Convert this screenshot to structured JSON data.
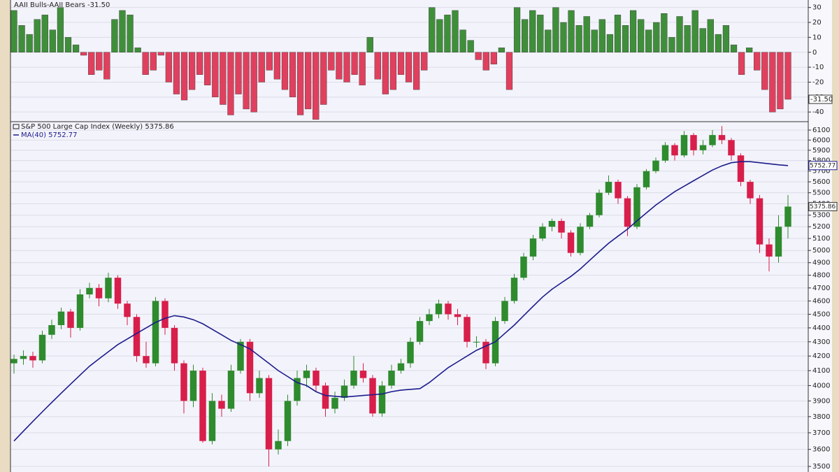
{
  "chart_data": [
    {
      "type": "bar",
      "title": "AAII Bulls-AAII Bears -31.50",
      "values": [
        28,
        18,
        12,
        22,
        25,
        15,
        30,
        10,
        5,
        -2,
        -15,
        -12,
        -18,
        22,
        28,
        25,
        3,
        -15,
        -12,
        -2,
        -20,
        -28,
        -32,
        -25,
        -15,
        -22,
        -30,
        -35,
        -42,
        -28,
        -38,
        -40,
        -20,
        -12,
        -18,
        -25,
        -30,
        -42,
        -38,
        -45,
        -35,
        -12,
        -18,
        -20,
        -15,
        -22,
        10,
        -18,
        -28,
        -25,
        -15,
        -20,
        -25,
        -12,
        30,
        22,
        25,
        28,
        15,
        8,
        -5,
        -12,
        -8,
        3,
        -25,
        30,
        22,
        28,
        25,
        15,
        30,
        20,
        28,
        18,
        24,
        15,
        22,
        12,
        25,
        18,
        28,
        22,
        15,
        20,
        26,
        10,
        24,
        18,
        28,
        16,
        22,
        12,
        18,
        5,
        -15,
        3,
        -12,
        -25,
        -40,
        -38,
        -31.5
      ],
      "last_value_label": "-31.50",
      "positive_color": "#3f8f3a",
      "negative_color": "#e0405e",
      "ylim": [
        -46,
        35
      ],
      "yticks": [
        30,
        20,
        10,
        0,
        -10,
        -20,
        -30,
        -40
      ],
      "grid": true
    },
    {
      "type": "candlestick",
      "title": "S&P 500 Large Cap Index (Weekly) 5375.86",
      "open": [
        4150,
        4180,
        4200,
        4170,
        4350,
        4420,
        4520,
        4400,
        4650,
        4700,
        4620,
        4780,
        4580,
        4480,
        4200,
        4150,
        4600,
        4400,
        4150,
        3900,
        4100,
        3650,
        3900,
        3850,
        4100,
        4300,
        3950,
        4050,
        3600,
        3650,
        3900,
        4050,
        4100,
        4000,
        3850,
        3920,
        4000,
        4100,
        4050,
        3820,
        4000,
        4100,
        4150,
        4300,
        4450,
        4500,
        4580,
        4500,
        4480,
        4300,
        4300,
        4150,
        4450,
        4600,
        4780,
        4950,
        5100,
        5200,
        5250,
        5150,
        4980,
        5200,
        5300,
        5500,
        5600,
        5450,
        5200,
        5550,
        5700,
        5800,
        5950,
        5850,
        6050,
        5900,
        5950,
        6050,
        6000,
        5850,
        5600,
        5450,
        5050,
        4950,
        5200
      ],
      "high": [
        4210,
        4240,
        4230,
        4380,
        4460,
        4550,
        4540,
        4690,
        4740,
        4730,
        4820,
        4800,
        4600,
        4500,
        4300,
        4630,
        4620,
        4420,
        4170,
        4140,
        4120,
        3950,
        3940,
        4140,
        4320,
        4320,
        4100,
        4070,
        3720,
        3940,
        4100,
        4140,
        4120,
        4020,
        3960,
        4040,
        4200,
        4150,
        4070,
        4030,
        4140,
        4180,
        4330,
        4480,
        4540,
        4610,
        4600,
        4540,
        4500,
        4340,
        4320,
        4480,
        4630,
        4810,
        4980,
        5130,
        5230,
        5270,
        5270,
        5170,
        5230,
        5320,
        5530,
        5660,
        5620,
        5470,
        5580,
        5720,
        5830,
        5980,
        5970,
        6090,
        6070,
        6000,
        6100,
        6140,
        6020,
        5870,
        5620,
        5480,
        5100,
        5300,
        5480
      ],
      "low": [
        4080,
        4140,
        4120,
        4150,
        4320,
        4390,
        4330,
        4380,
        4620,
        4560,
        4590,
        4540,
        4420,
        4160,
        4120,
        4130,
        4350,
        4100,
        3820,
        3860,
        3640,
        3630,
        3800,
        3830,
        4080,
        3900,
        3920,
        3500,
        3570,
        3620,
        3870,
        3990,
        3960,
        3800,
        3820,
        3900,
        3980,
        4020,
        3800,
        3800,
        3980,
        4080,
        4120,
        4280,
        4420,
        4470,
        4460,
        4420,
        4260,
        4260,
        4110,
        4130,
        4430,
        4580,
        4760,
        4920,
        5080,
        5160,
        5100,
        4950,
        4960,
        5180,
        5280,
        5480,
        5400,
        5120,
        5180,
        5530,
        5680,
        5780,
        5800,
        5830,
        5850,
        5860,
        5930,
        5960,
        5800,
        5560,
        5400,
        4980,
        4830,
        4900,
        5100
      ],
      "close": [
        4180,
        4200,
        4170,
        4350,
        4420,
        4520,
        4400,
        4650,
        4700,
        4620,
        4780,
        4580,
        4480,
        4200,
        4150,
        4600,
        4400,
        4150,
        3900,
        4100,
        3650,
        3900,
        3850,
        4100,
        4300,
        3950,
        4050,
        3600,
        3650,
        3900,
        4050,
        4100,
        4000,
        3850,
        3920,
        4000,
        4100,
        4050,
        3820,
        4000,
        4100,
        4150,
        4300,
        4450,
        4500,
        4580,
        4500,
        4480,
        4300,
        4300,
        4150,
        4450,
        4600,
        4780,
        4950,
        5100,
        5200,
        5250,
        5150,
        4980,
        5200,
        5300,
        5500,
        5600,
        5450,
        5200,
        5550,
        5700,
        5800,
        5950,
        5850,
        6050,
        5900,
        5950,
        6050,
        6000,
        5850,
        5600,
        5450,
        5050,
        4950,
        5200,
        5375.86
      ],
      "up_color": "#2e8b2e",
      "down_color": "#d81e4a",
      "series": [
        {
          "name": "MA(40) 5752.77",
          "color": "#1c1c8c",
          "values": [
            3650,
            3710,
            3770,
            3830,
            3890,
            3950,
            4010,
            4070,
            4130,
            4180,
            4230,
            4280,
            4320,
            4360,
            4400,
            4440,
            4470,
            4490,
            4480,
            4460,
            4430,
            4390,
            4350,
            4310,
            4280,
            4250,
            4200,
            4150,
            4100,
            4060,
            4020,
            4000,
            3960,
            3935,
            3930,
            3925,
            3930,
            3935,
            3940,
            3945,
            3960,
            3970,
            3975,
            3980,
            4020,
            4070,
            4120,
            4160,
            4200,
            4240,
            4270,
            4300,
            4360,
            4420,
            4490,
            4560,
            4630,
            4690,
            4740,
            4790,
            4850,
            4920,
            4990,
            5060,
            5120,
            5180,
            5250,
            5320,
            5390,
            5450,
            5510,
            5560,
            5610,
            5660,
            5710,
            5750,
            5780,
            5790,
            5790,
            5780,
            5770,
            5760,
            5752.77
          ]
        }
      ],
      "ylim": [
        3468,
        6178
      ],
      "log_scale": true,
      "yticks": [
        3500,
        3600,
        3700,
        3800,
        3900,
        4000,
        4100,
        4200,
        4300,
        4400,
        4500,
        4600,
        4700,
        4800,
        4900,
        5000,
        5100,
        5200,
        5300,
        5400,
        5500,
        5600,
        5700,
        5800,
        5900,
        6000,
        6100
      ],
      "grid": true
    }
  ]
}
